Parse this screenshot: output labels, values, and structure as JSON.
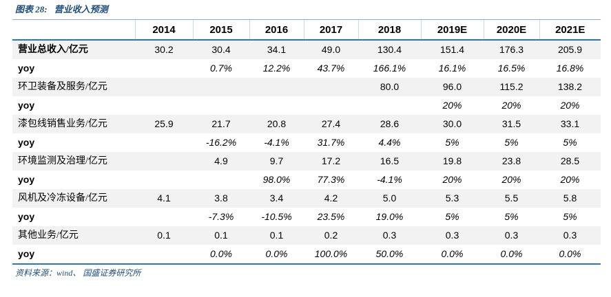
{
  "figure": {
    "label": "图表 28:",
    "title": "营业收入预测",
    "source": "资料来源：wind、 国盛证券研究所"
  },
  "table": {
    "columns": [
      "",
      "2014",
      "2015",
      "2016",
      "2017",
      "2018",
      "2019E",
      "2020E",
      "2021E"
    ],
    "rows": [
      {
        "label": "营业总收入/亿元",
        "style": "metric",
        "label_bold": true,
        "cells": [
          "30.2",
          "30.4",
          "34.1",
          "49.0",
          "130.4",
          "151.4",
          "176.3",
          "205.9"
        ]
      },
      {
        "label": "yoy",
        "style": "yoy",
        "cells": [
          "",
          "0.7%",
          "12.2%",
          "43.7%",
          "166.1%",
          "16.1%",
          "16.5%",
          "16.8%"
        ]
      },
      {
        "label": "环卫装备及服务/亿元",
        "style": "metric",
        "label_bold": false,
        "cells": [
          "",
          "",
          "",
          "",
          "80.0",
          "96.0",
          "115.2",
          "138.2"
        ]
      },
      {
        "label": "yoy",
        "style": "yoy",
        "cells": [
          "",
          "",
          "",
          "",
          "",
          "20%",
          "20%",
          "20%"
        ]
      },
      {
        "label": "漆包线销售业务/亿元",
        "style": "metric",
        "label_bold": false,
        "cells": [
          "25.9",
          "21.7",
          "20.8",
          "27.4",
          "28.6",
          "30.0",
          "31.5",
          "33.1"
        ]
      },
      {
        "label": "yoy",
        "style": "yoy",
        "cells": [
          "",
          "-16.2%",
          "-4.1%",
          "31.7%",
          "4.4%",
          "5%",
          "5%",
          "5%"
        ]
      },
      {
        "label": "环境监测及治理/亿元",
        "style": "metric",
        "label_bold": false,
        "cells": [
          "",
          "4.9",
          "9.7",
          "17.2",
          "16.5",
          "19.8",
          "23.8",
          "28.5"
        ]
      },
      {
        "label": "yoy",
        "style": "yoy",
        "cells": [
          "",
          "",
          "98.0%",
          "77.3%",
          "-4.1%",
          "20%",
          "20%",
          "20%"
        ]
      },
      {
        "label": "风机及冷冻设备/亿元",
        "style": "metric",
        "label_bold": false,
        "cells": [
          "4.1",
          "3.8",
          "3.4",
          "4.2",
          "5.0",
          "5.3",
          "5.5",
          "5.8"
        ]
      },
      {
        "label": "yoy",
        "style": "yoy",
        "cells": [
          "",
          "-7.3%",
          "-10.5%",
          "23.5%",
          "19.0%",
          "5%",
          "5%",
          "5%"
        ]
      },
      {
        "label": "其他业务/亿元",
        "style": "metric",
        "label_bold": false,
        "cells": [
          "0.1",
          "0.1",
          "0.1",
          "0.2",
          "0.3",
          "0.3",
          "0.3",
          "0.3"
        ]
      },
      {
        "label": "yoy",
        "style": "yoy",
        "cells": [
          "",
          "0.0%",
          "0.0%",
          "100.0%",
          "50.0%",
          "0.0%",
          "0.0%",
          "0.0%"
        ]
      }
    ]
  },
  "colors": {
    "accent_blue": "#2e75b6",
    "title_blue": "#1f4e79",
    "row_shade": "#f2f2f2",
    "light_rule": "#93a9c7",
    "column_separator": "#cdd9ea"
  }
}
